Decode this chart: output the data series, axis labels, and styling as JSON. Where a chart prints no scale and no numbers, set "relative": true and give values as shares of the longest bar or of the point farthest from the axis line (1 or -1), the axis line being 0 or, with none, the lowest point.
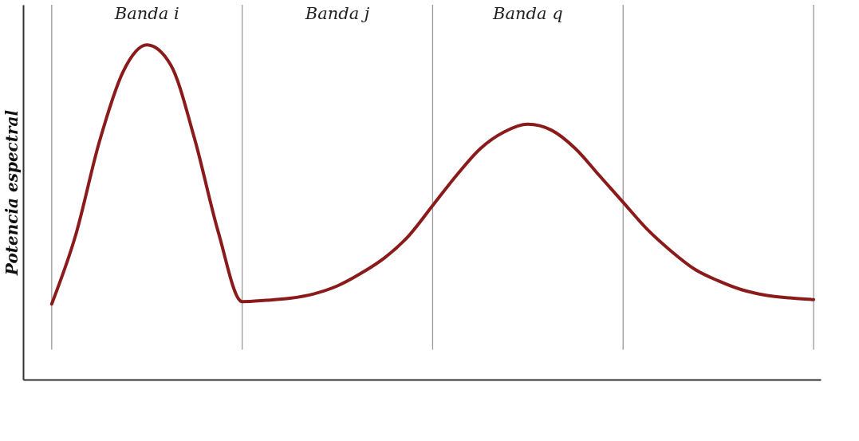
{
  "chart_data": {
    "type": "line",
    "relative": true,
    "ylabel": "Potencia espectral",
    "categories": [
      null,
      null,
      null,
      null,
      null,
      null,
      null,
      null,
      null,
      null,
      null,
      null,
      null,
      null,
      null,
      null,
      null,
      null,
      null,
      null,
      null,
      null,
      null,
      null,
      null,
      null,
      null,
      null,
      null,
      null,
      null,
      null,
      null
    ],
    "series": [
      {
        "color": "#8b1a1a",
        "values": [
          0.226,
          0.43,
          0.71,
          0.92,
          1.0,
          0.94,
          0.72,
          0.44,
          0.233,
          0.237,
          0.243,
          0.256,
          0.28,
          0.318,
          0.365,
          0.43,
          0.52,
          0.61,
          0.69,
          0.74,
          0.763,
          0.745,
          0.69,
          0.61,
          0.53,
          0.45,
          0.385,
          0.33,
          0.295,
          0.268,
          0.252,
          0.244,
          0.239
        ]
      }
    ],
    "annotations": [
      "Banda i",
      "Banda j",
      "Banda q"
    ],
    "grid": "x",
    "marker": "none",
    "line_style": "solid"
  }
}
